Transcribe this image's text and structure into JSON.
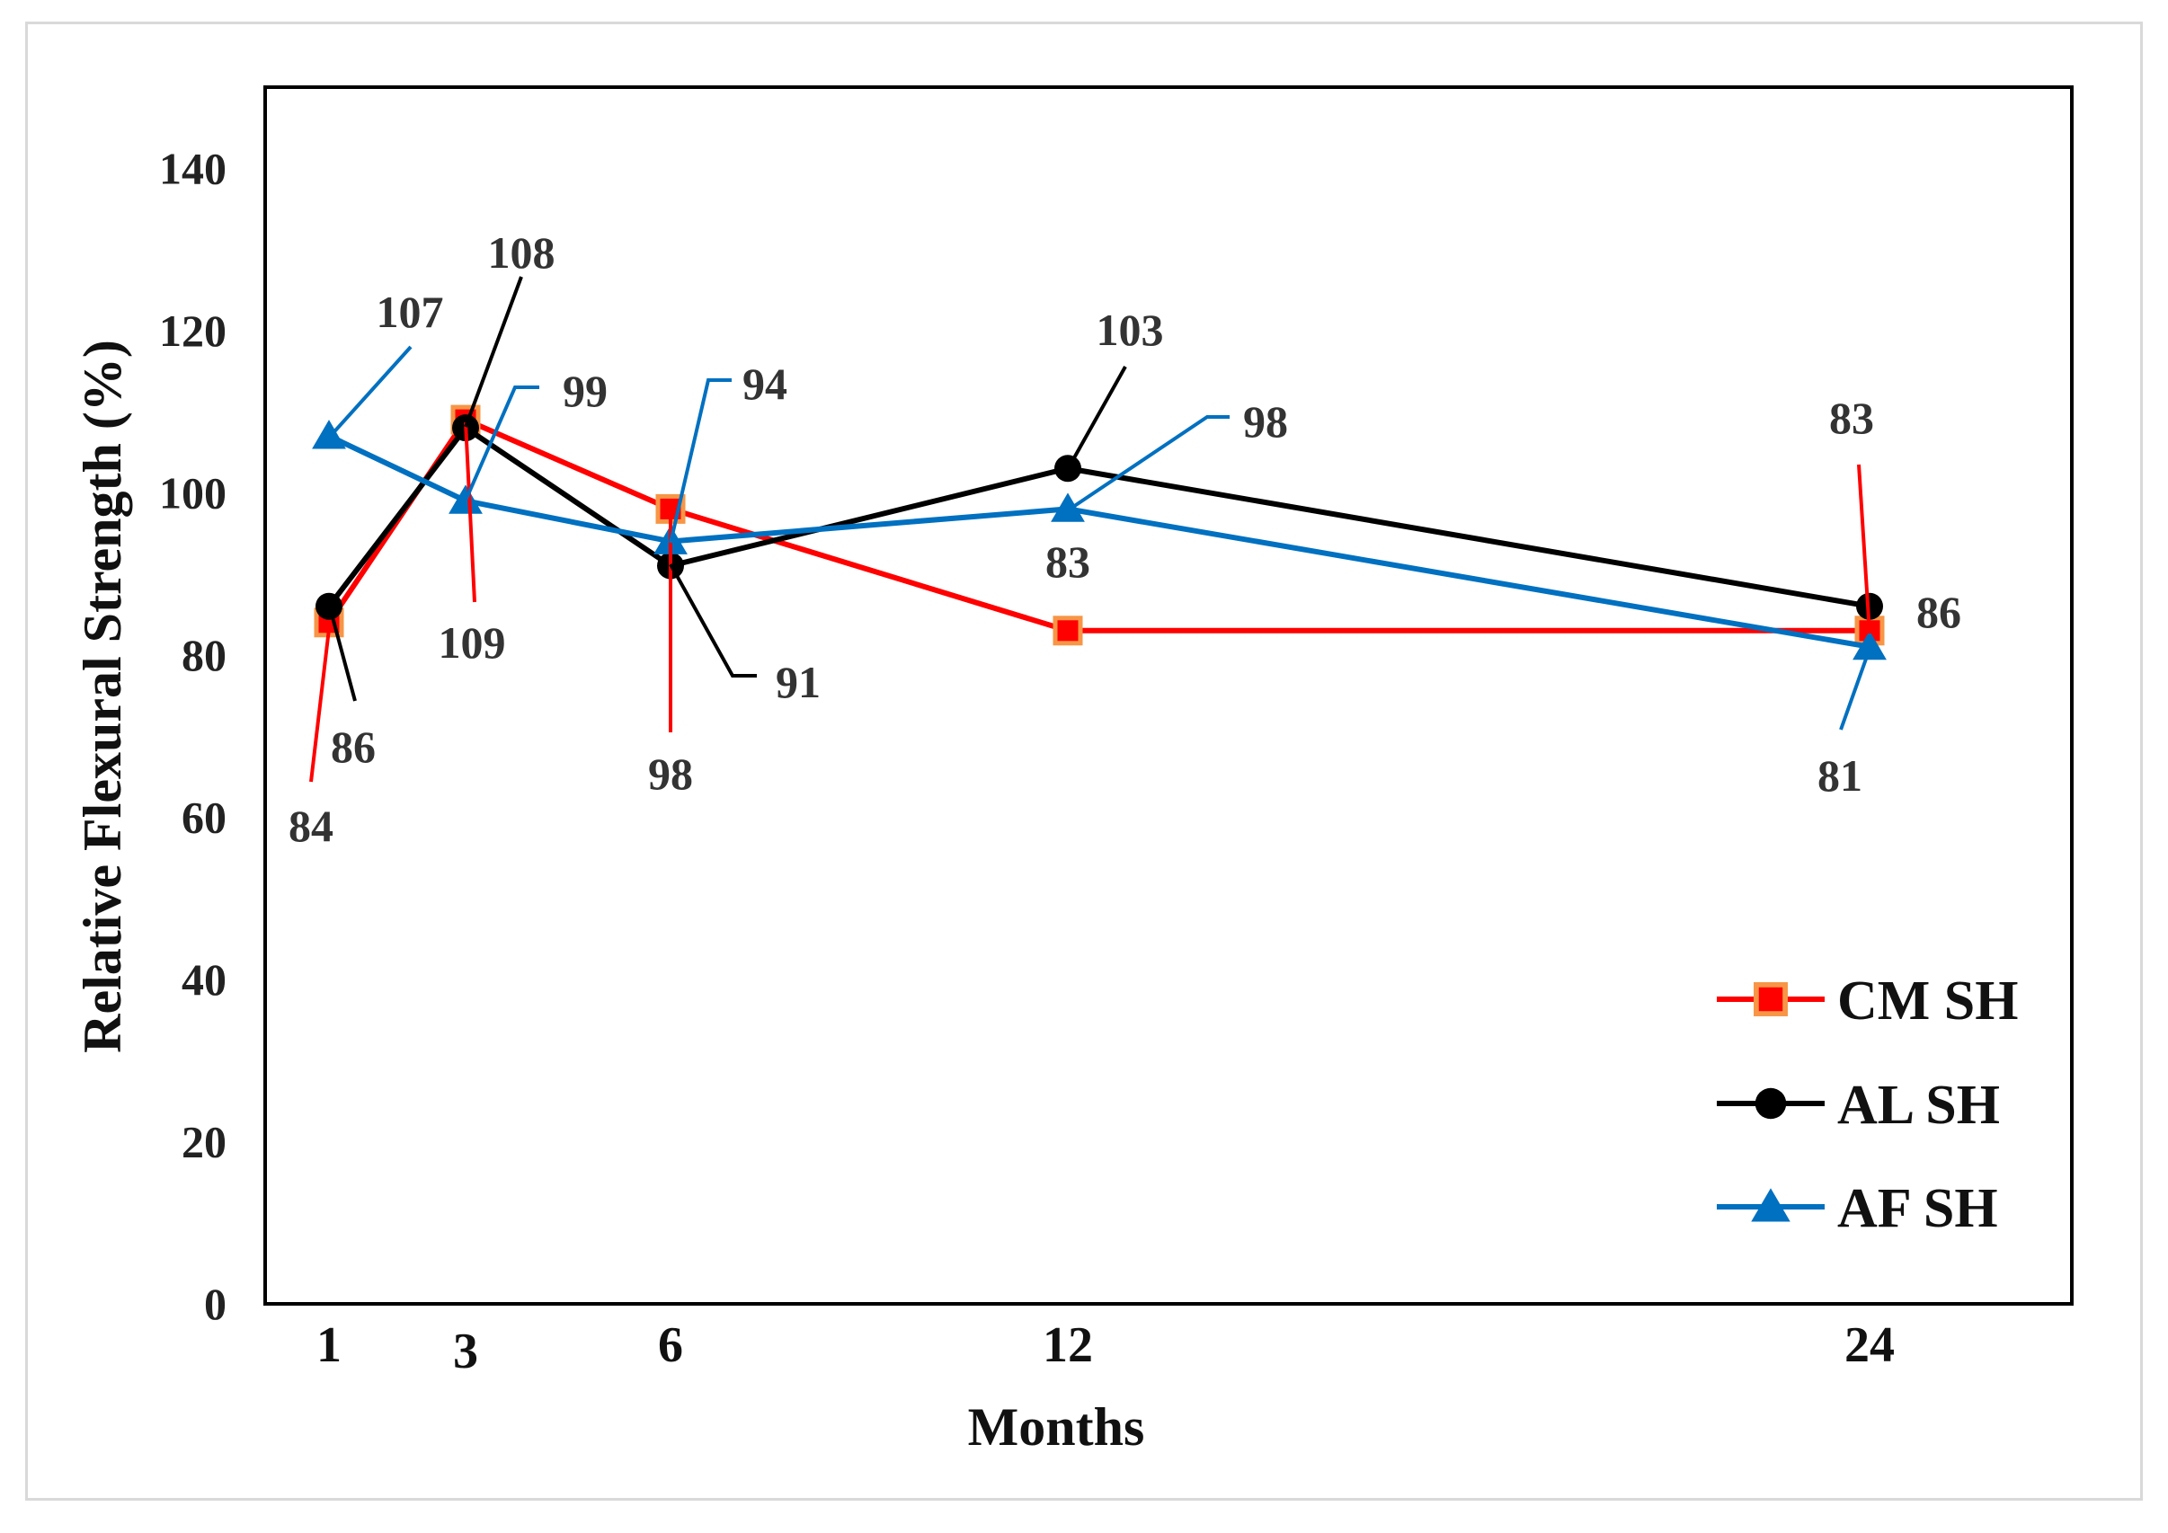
{
  "chart_data": {
    "type": "line",
    "title": "",
    "xlabel": "Months",
    "ylabel": "Relative Flexural Strength (%)",
    "categories": [
      "1",
      "3",
      "6",
      "12",
      "24"
    ],
    "x": [
      1,
      3,
      6,
      12,
      24
    ],
    "ylim": [
      0,
      150
    ],
    "yticks": [
      0,
      20,
      40,
      60,
      80,
      100,
      120,
      140
    ],
    "grid": false,
    "legend_position": "bottom-right",
    "series": [
      {
        "name": "CM SH",
        "color": "#ff0000",
        "marker": "square",
        "marker_fill": "#ff0000",
        "marker_edge": "#f79646",
        "values": [
          84,
          109,
          98,
          83,
          83
        ],
        "labels": [
          "84",
          "109",
          "98",
          "83",
          "83"
        ]
      },
      {
        "name": "AL SH",
        "color": "#000000",
        "marker": "circle",
        "values": [
          86,
          108,
          91,
          103,
          86
        ],
        "labels": [
          "86",
          "108",
          "91",
          "103",
          "86"
        ]
      },
      {
        "name": "AF SH",
        "color": "#0070c0",
        "marker": "triangle",
        "values": [
          107,
          99,
          94,
          98,
          81
        ],
        "labels": [
          "107",
          "99",
          "94",
          "98",
          "81"
        ]
      }
    ]
  }
}
